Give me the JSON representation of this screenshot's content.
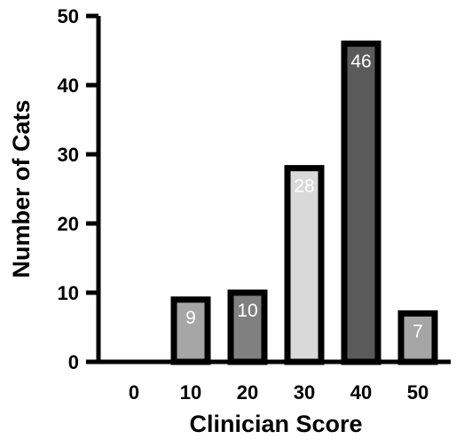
{
  "chart_data": {
    "type": "bar",
    "categories": [
      "0",
      "10",
      "20",
      "30",
      "40",
      "50"
    ],
    "values": [
      0,
      9,
      10,
      28,
      46,
      7
    ],
    "data_labels": [
      "",
      "9",
      "10",
      "28",
      "46",
      "7"
    ],
    "bar_colors": [
      "#a6a6a6",
      "#a6a6a6",
      "#808080",
      "#d9d9d9",
      "#5a5a5a",
      "#a6a6a6"
    ],
    "title": "",
    "xlabel": "Clinician Score",
    "ylabel": "Number of Cats",
    "ylim": [
      0,
      50
    ],
    "yticks": [
      "0",
      "10",
      "20",
      "30",
      "40",
      "50"
    ],
    "grid": false,
    "legend": "none"
  }
}
